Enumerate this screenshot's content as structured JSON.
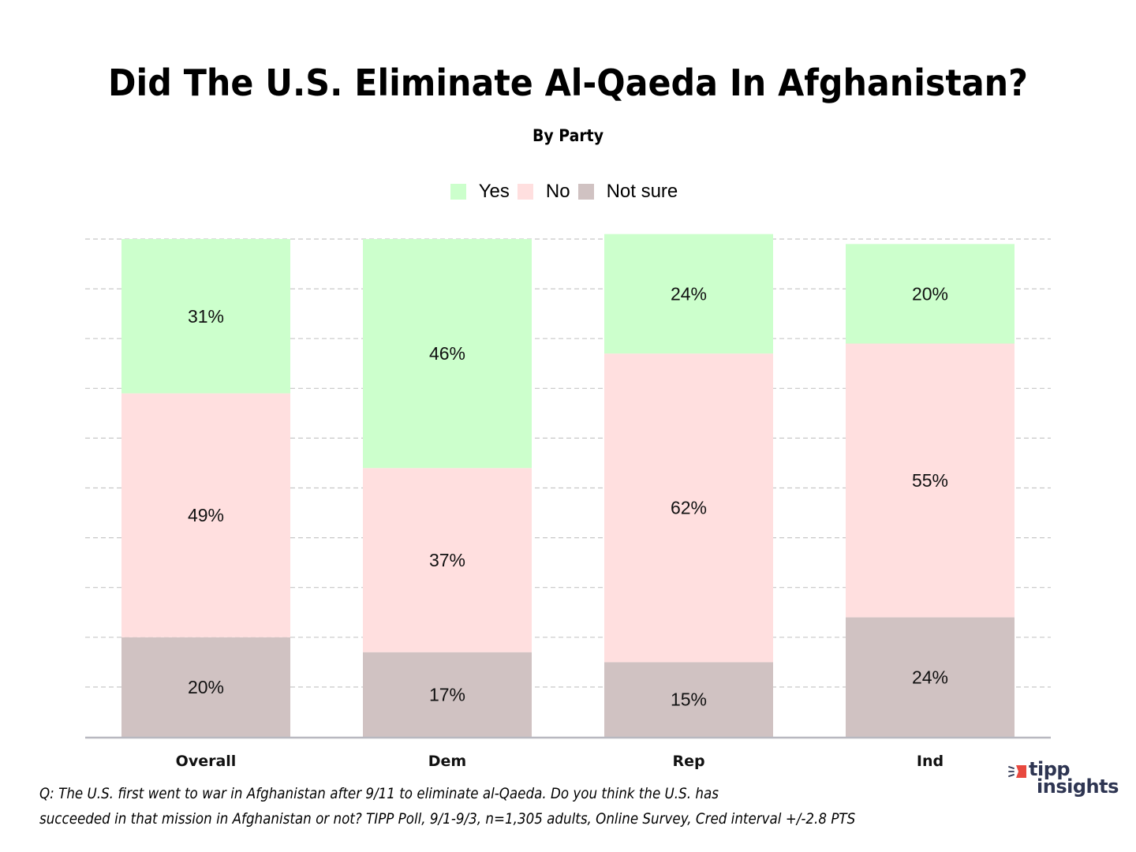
{
  "chart_data": {
    "type": "bar",
    "stacked": true,
    "orientation": "vertical",
    "title": "Did The U.S. Eliminate Al-Qaeda In Afghanistan?",
    "subtitle": "By Party",
    "xlabel": "",
    "ylabel": "",
    "ylim": [
      0,
      100
    ],
    "y_ticks_visible": false,
    "grid": true,
    "grid_step": 10,
    "legend_position": "top-center",
    "categories": [
      "Overall",
      "Dem",
      "Rep",
      "Ind"
    ],
    "series": [
      {
        "name": "Not sure",
        "color": "#d0c2c2",
        "values": [
          20,
          17,
          15,
          24
        ]
      },
      {
        "name": "No",
        "color": "#ffdfdf",
        "values": [
          49,
          37,
          62,
          55
        ]
      },
      {
        "name": "Yes",
        "color": "#ccffcc",
        "values": [
          31,
          46,
          24,
          20
        ]
      }
    ],
    "legend": [
      {
        "name": "Yes",
        "color": "#ccffcc"
      },
      {
        "name": "No",
        "color": "#ffdfdf"
      },
      {
        "name": "Not sure",
        "color": "#d0c2c2"
      }
    ],
    "label_suffix": "%"
  },
  "footnote": {
    "line1": "Q:  The U.S. first went to war in Afghanistan after 9/11 to eliminate al-Qaeda.  Do you think the U.S. has",
    "line2": "succeeded in that mission in Afghanistan or not? TIPP Poll, 9/1-9/3, n=1,305 adults, Online Survey, Cred interval +/-2.8 PTS"
  },
  "logo": {
    "line1": "tipp",
    "line2": "insights",
    "accent_color": "#e8493f",
    "text_color": "#2e3552"
  }
}
